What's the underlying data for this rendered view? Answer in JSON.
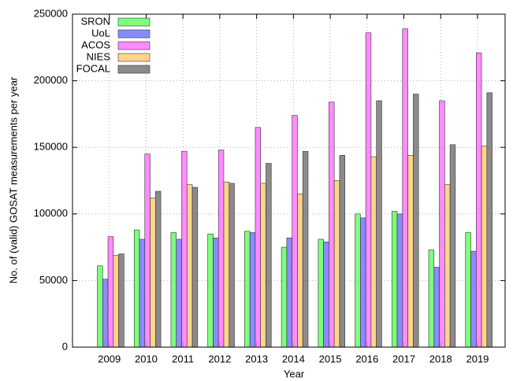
{
  "chart_data": {
    "type": "bar",
    "x_label": "Year",
    "y_label": "No. of (valid) GOSAT measurements per year",
    "categories": [
      "2009",
      "2010",
      "2011",
      "2012",
      "2013",
      "2014",
      "2015",
      "2016",
      "2017",
      "2018",
      "2019"
    ],
    "series": [
      {
        "name": "SRON",
        "color": "#66ff66",
        "values": [
          61000,
          88000,
          86000,
          85000,
          87000,
          75000,
          81000,
          100000,
          102000,
          73000,
          86000
        ]
      },
      {
        "name": "UoL",
        "color": "#7777ff",
        "values": [
          51000,
          81000,
          81000,
          82000,
          86000,
          82000,
          79000,
          97000,
          100000,
          60000,
          72000
        ]
      },
      {
        "name": "ACOS",
        "color": "#ff77ff",
        "values": [
          83000,
          145000,
          147000,
          148000,
          165000,
          174000,
          184000,
          236000,
          239000,
          185000,
          221000
        ]
      },
      {
        "name": "NIES",
        "color": "#ffcc77",
        "values": [
          69000,
          112000,
          122000,
          124000,
          123000,
          115000,
          125000,
          143000,
          144000,
          122000,
          151000
        ]
      },
      {
        "name": "FOCAL",
        "color": "#777777",
        "values": [
          70000,
          117000,
          120000,
          123000,
          138000,
          147000,
          144000,
          185000,
          190000,
          152000,
          191000
        ]
      }
    ],
    "ylim": [
      0,
      250000
    ],
    "yticks": [
      0,
      50000,
      100000,
      150000,
      200000,
      250000
    ],
    "grid": true,
    "legend": "top-left"
  }
}
